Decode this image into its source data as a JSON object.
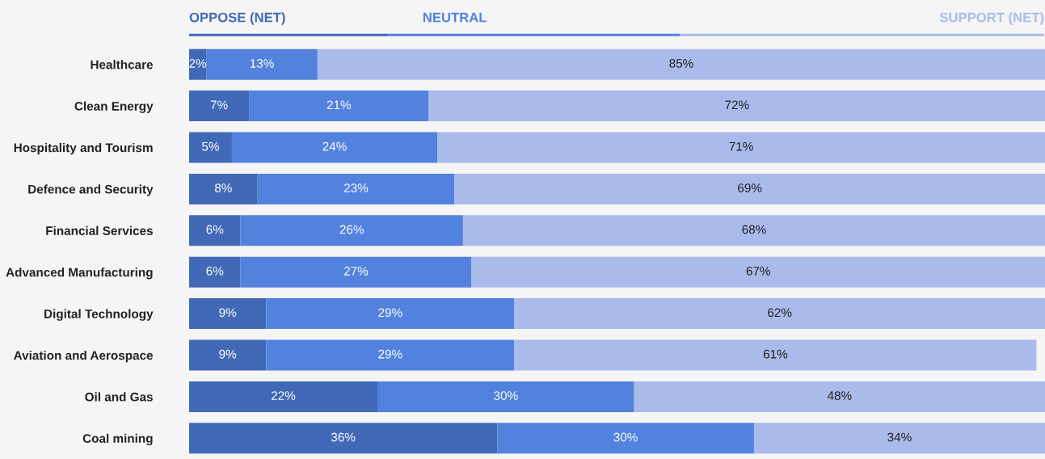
{
  "chart_data": {
    "type": "bar",
    "orientation": "horizontal",
    "stacked": true,
    "legend": "top",
    "tick_labels": "y",
    "categories": [
      "Healthcare",
      "Clean Energy",
      "Hospitality and Tourism",
      "Defence and Security",
      "Financial Services",
      "Advanced Manufacturing",
      "Digital Technology",
      "Aviation and Aerospace",
      "Oil and Gas",
      "Coal mining"
    ],
    "series": [
      {
        "name": "OPPOSE (NET)",
        "color": "#4169b8",
        "values": [
          2,
          7,
          5,
          8,
          6,
          6,
          9,
          9,
          22,
          36
        ],
        "value_labels": [
          "2%",
          "7%",
          "5%",
          "8%",
          "6%",
          "6%",
          "9%",
          "9%",
          "22%",
          "36%"
        ]
      },
      {
        "name": "NEUTRAL",
        "color": "#5282de",
        "values": [
          13,
          21,
          24,
          23,
          26,
          27,
          29,
          29,
          30,
          30
        ],
        "value_labels": [
          "13%",
          "21%",
          "24%",
          "23%",
          "26%",
          "27%",
          "29%",
          "29%",
          "30%",
          "30%"
        ]
      },
      {
        "name": "SUPPORT (NET)",
        "color": "#aabbeb",
        "values": [
          85,
          72,
          71,
          69,
          68,
          67,
          62,
          61,
          48,
          34
        ],
        "value_labels": [
          "85%",
          "72%",
          "71%",
          "69%",
          "68%",
          "67%",
          "62%",
          "61%",
          "48%",
          "34%"
        ]
      }
    ]
  }
}
